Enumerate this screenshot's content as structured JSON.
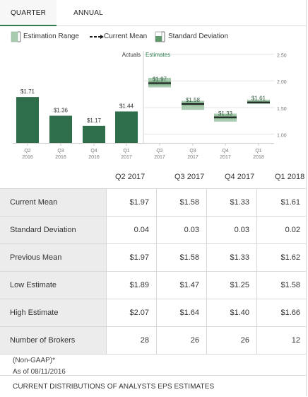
{
  "tabs": {
    "quarter": "QUARTER",
    "annual": "ANNUAL"
  },
  "legend": {
    "range": "Estimation Range",
    "mean": "Current Mean",
    "stdev": "Standard Deviation"
  },
  "colors": {
    "actual_bar": "#2f6e4b",
    "range_fill": "#a9cbb0",
    "stdev_fill": "#7fb08b",
    "mean_line": "#1a1a1a",
    "tab_accent": "#2e7d4f"
  },
  "chart_data": {
    "type": "bar",
    "section_labels": {
      "actuals": "Actuals",
      "estimates": "Estimates"
    },
    "categories": [
      "Q2 2016",
      "Q3 2016",
      "Q4 2016",
      "Q1 2017",
      "Q2 2017",
      "Q3 2017",
      "Q4 2017",
      "Q1 2018"
    ],
    "x_tick_labels": [
      [
        "Q2",
        "2016"
      ],
      [
        "Q3",
        "2016"
      ],
      [
        "Q4",
        "2016"
      ],
      [
        "Q1",
        "2017"
      ],
      [
        "Q2",
        "2017"
      ],
      [
        "Q3",
        "2017"
      ],
      [
        "Q4",
        "2017"
      ],
      [
        "Q1",
        "2018"
      ]
    ],
    "actuals": [
      {
        "label": "$1.71",
        "value": 1.71
      },
      {
        "label": "$1.36",
        "value": 1.36
      },
      {
        "label": "$1.17",
        "value": 1.17
      },
      {
        "label": "$1.44",
        "value": 1.44
      }
    ],
    "estimates": [
      {
        "label": "$1.97",
        "mean": 1.97,
        "low": 1.89,
        "high": 2.07,
        "stdev": 0.04
      },
      {
        "label": "$1.58",
        "mean": 1.58,
        "low": 1.47,
        "high": 1.64,
        "stdev": 0.03
      },
      {
        "label": "$1.33",
        "mean": 1.33,
        "low": 1.25,
        "high": 1.4,
        "stdev": 0.03
      },
      {
        "label": "$1.61",
        "mean": 1.61,
        "low": 1.58,
        "high": 1.66,
        "stdev": 0.02
      }
    ],
    "y_ticks": [
      "2.50",
      "2.00",
      "1.50",
      "1.00"
    ],
    "ylim": [
      0.85,
      2.52
    ],
    "ylabel": "",
    "xlabel": "",
    "title": ""
  },
  "table": {
    "columns": [
      "Q2 2017",
      "Q3 2017",
      "Q4 2017",
      "Q1 2018"
    ],
    "rows": [
      {
        "label": "Current Mean",
        "values": [
          "$1.97",
          "$1.58",
          "$1.33",
          "$1.61"
        ]
      },
      {
        "label": "Standard Deviation",
        "values": [
          "0.04",
          "0.03",
          "0.03",
          "0.02"
        ]
      },
      {
        "label": "Previous Mean",
        "values": [
          "$1.97",
          "$1.58",
          "$1.33",
          "$1.62"
        ]
      },
      {
        "label": "Low Estimate",
        "values": [
          "$1.89",
          "$1.47",
          "$1.25",
          "$1.58"
        ]
      },
      {
        "label": "High Estimate",
        "values": [
          "$2.07",
          "$1.64",
          "$1.40",
          "$1.66"
        ]
      },
      {
        "label": "Number of Brokers",
        "values": [
          "28",
          "26",
          "26",
          "12"
        ]
      }
    ]
  },
  "footnote": {
    "basis": "(Non-GAAP)*",
    "as_of": "As of 08/11/2016"
  },
  "bottom": {
    "link": "CURRENT DISTRIBUTIONS OF ANALYSTS EPS ESTIMATES"
  }
}
